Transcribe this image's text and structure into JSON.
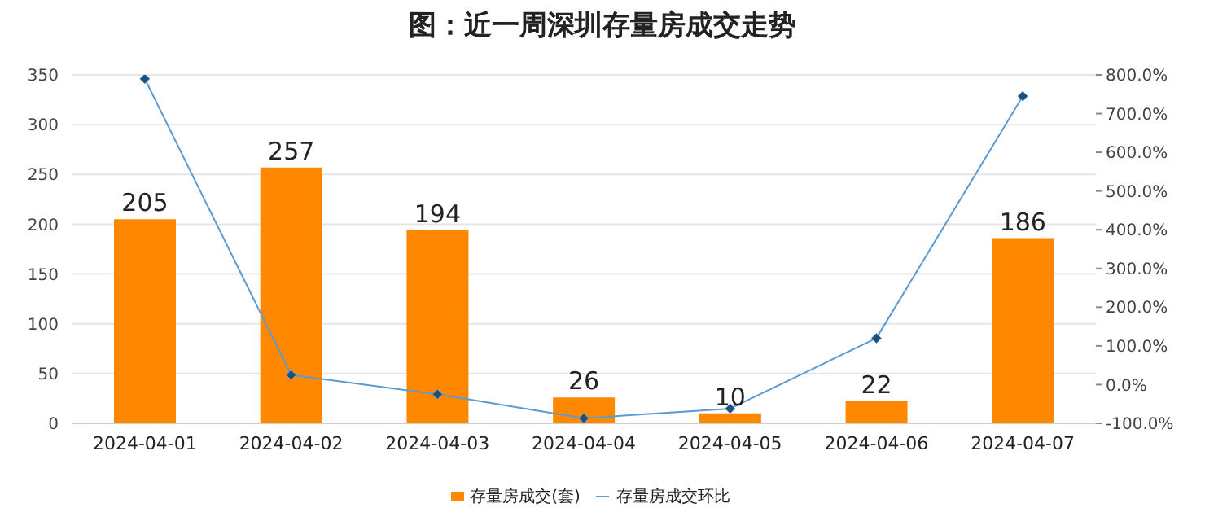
{
  "chart_data": {
    "type": "bar",
    "title": "图：近一周深圳存量房成交走势",
    "categories": [
      "2024-04-01",
      "2024-04-02",
      "2024-04-03",
      "2024-04-04",
      "2024-04-05",
      "2024-04-06",
      "2024-04-07"
    ],
    "series": [
      {
        "name": "存量房成交(套)",
        "color": "#ff8800",
        "values": [
          205,
          257,
          194,
          26,
          10,
          22,
          186
        ],
        "value_labels": [
          "205",
          "257",
          "194",
          "26",
          "10",
          "22",
          "186"
        ]
      },
      {
        "name": "存量房成交环比",
        "type": "line",
        "axis": "y2",
        "color": "#5b9bd5",
        "values": [
          790,
          25,
          -25,
          -87,
          -62,
          120,
          745
        ],
        "marker": "diamond"
      }
    ],
    "ylim": [
      0,
      350
    ],
    "yticks": [
      0,
      50,
      100,
      150,
      200,
      250,
      300,
      350
    ],
    "y2lim": [
      -100,
      800
    ],
    "y2ticks": [
      {
        "value": -100,
        "label": "-100.0%"
      },
      {
        "value": 0,
        "label": "0.0%"
      },
      {
        "value": 100,
        "label": "100.0%"
      },
      {
        "value": 200,
        "label": "200.0%"
      },
      {
        "value": 300,
        "label": "300.0%"
      },
      {
        "value": 400,
        "label": "400.0%"
      },
      {
        "value": 500,
        "label": "500.0%"
      },
      {
        "value": 600,
        "label": "600.0%"
      },
      {
        "value": 700,
        "label": "700.0%"
      },
      {
        "value": 800,
        "label": "800.0%"
      }
    ],
    "grid": "y",
    "legend": "bottom"
  }
}
